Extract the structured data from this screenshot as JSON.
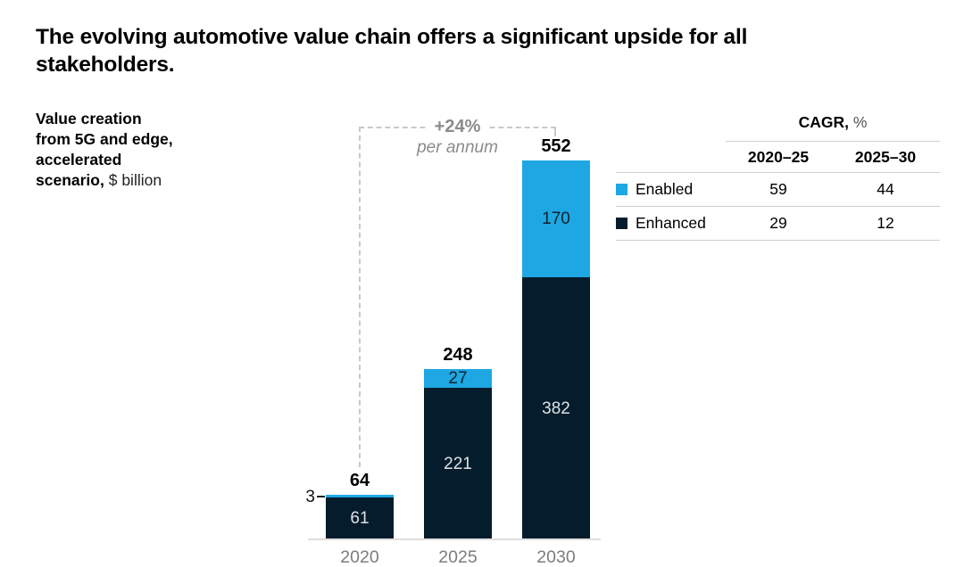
{
  "title": "The evolving automotive value chain offers a significant upside for all stakeholders.",
  "value_label": {
    "bold": "Value creation from 5G and edge, accelerated scenario,",
    "unit": "$ billion"
  },
  "chart_data": {
    "type": "bar",
    "stacked": true,
    "title": "Value creation from 5G and edge, accelerated scenario, $ billion",
    "xlabel": "",
    "ylabel": "$ billion",
    "categories": [
      "2020",
      "2025",
      "2030"
    ],
    "series": [
      {
        "name": "Enhanced",
        "color": "#051C2C",
        "values": [
          61,
          221,
          382
        ]
      },
      {
        "name": "Enabled",
        "color": "#1EA7E3",
        "values": [
          3,
          27,
          170
        ]
      }
    ],
    "totals": [
      64,
      248,
      552
    ],
    "growth_annotation": {
      "rate": "+24%",
      "unit": "per annum"
    },
    "legend_position": "right-table",
    "grid": false
  },
  "cagr_table": {
    "title_bold": "CAGR,",
    "title_unit": "%",
    "columns": [
      "2020–25",
      "2025–30"
    ],
    "rows": [
      {
        "label": "Enabled",
        "color": "#1EA7E3",
        "values": [
          "59",
          "44"
        ]
      },
      {
        "label": "Enhanced",
        "color": "#051C2C",
        "values": [
          "29",
          "12"
        ]
      }
    ]
  },
  "colors": {
    "enabled": "#1EA7E3",
    "enhanced": "#051C2C",
    "axis_text": "#7c7c7c",
    "annotation_text": "#8b8b8b",
    "dashed_line": "#c9c9c9",
    "axis_line": "#dedede",
    "table_rule": "#cfcfcf"
  }
}
